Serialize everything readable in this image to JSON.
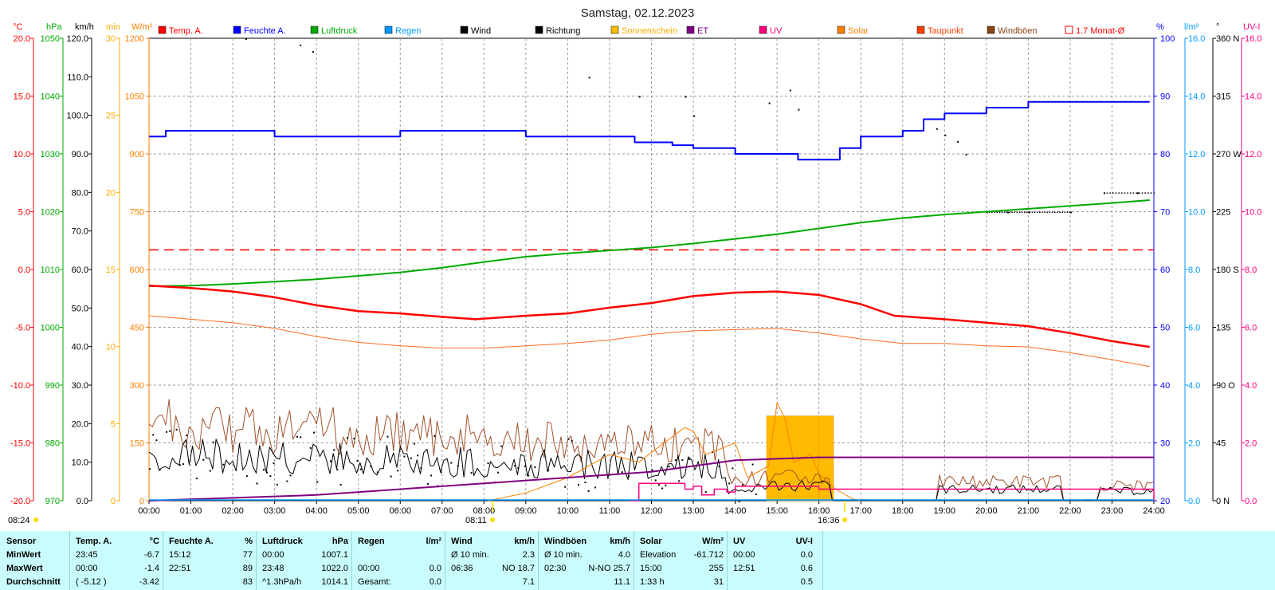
{
  "title": "Samstag, 02.12.2023",
  "chart_data": {
    "type": "line",
    "title": "Samstag, 02.12.2023",
    "x_ticks": [
      "00:00",
      "01:00",
      "02:00",
      "03:00",
      "04:00",
      "05:00",
      "06:00",
      "07:00",
      "08:00",
      "09:00",
      "10:00",
      "11:00",
      "12:00",
      "13:00",
      "14:00",
      "15:00",
      "16:00",
      "17:00",
      "18:00",
      "19:00",
      "20:00",
      "21:00",
      "22:00",
      "23:00",
      "24:00"
    ],
    "grid": "dashed",
    "legend": [
      {
        "name": "Temp. A.",
        "color": "#ff0000"
      },
      {
        "name": "Feuchte A.",
        "color": "#0000ff"
      },
      {
        "name": "Luftdruck",
        "color": "#00aa00"
      },
      {
        "name": "Regen",
        "color": "#0099ff"
      },
      {
        "name": "Wind",
        "color": "#000000"
      },
      {
        "name": "Richtung",
        "color": "#000000"
      },
      {
        "name": "Sonnenschein",
        "color": "#ffbb00"
      },
      {
        "name": "ET",
        "color": "#800080"
      },
      {
        "name": "UV",
        "color": "#ff0080"
      },
      {
        "name": "Solar",
        "color": "#ff8000"
      },
      {
        "name": "Taupunkt",
        "color": "#ff4000"
      },
      {
        "name": "Windböen",
        "color": "#8b4513"
      },
      {
        "name": "1.7 Monat-Ø",
        "color": "#ff0000"
      }
    ],
    "axes": {
      "temp": {
        "unit": "°C",
        "color": "#ff0000",
        "ticks": [
          "20.0",
          "15.0",
          "10.0",
          "5.0",
          "0.0",
          "-5.0",
          "-10.0",
          "-15.0",
          "-20.0"
        ]
      },
      "hpa": {
        "unit": "hPa",
        "color": "#00aa00",
        "ticks": [
          "1050",
          "1040",
          "1030",
          "1020",
          "1010",
          "1000",
          "990",
          "980",
          "970"
        ]
      },
      "kmh": {
        "unit": "km/h",
        "color": "#000000",
        "ticks": [
          "120.0",
          "110.0",
          "100.0",
          "90.0",
          "80.0",
          "70.0",
          "60.0",
          "50.0",
          "40.0",
          "30.0",
          "20.0",
          "10.0",
          "0.0"
        ]
      },
      "min": {
        "unit": "min",
        "color": "#ffaa00",
        "ticks": [
          "30",
          "25",
          "20",
          "15",
          "10",
          "5",
          "0"
        ]
      },
      "wm2": {
        "unit": "W/m²",
        "color": "#ff8000",
        "ticks": [
          "1200",
          "1050",
          "900",
          "750",
          "600",
          "450",
          "300",
          "150",
          "0"
        ]
      },
      "pct": {
        "unit": "%",
        "color": "#0000ff",
        "ticks": [
          "100",
          "90",
          "80",
          "70",
          "60",
          "50",
          "40",
          "30",
          "20"
        ]
      },
      "lm2": {
        "unit": "l/m²",
        "color": "#0099ff",
        "ticks": [
          "16.0",
          "14.0",
          "12.0",
          "10.0",
          "8.0",
          "6.0",
          "4.0",
          "2.0",
          "0.0"
        ]
      },
      "deg": {
        "unit": "°",
        "color": "#000000",
        "ticks": [
          "360 N",
          "315",
          "270 W",
          "225",
          "180 S",
          "135",
          "90 O",
          "45",
          "0 N"
        ]
      },
      "uvi": {
        "unit": "UV-I",
        "color": "#ff0080",
        "ticks": [
          "16.0",
          "14.0",
          "12.0",
          "10.0",
          "8.0",
          "6.0",
          "4.0",
          "2.0",
          "0.0"
        ]
      }
    },
    "temp_c": [
      [
        0,
        -1.4
      ],
      [
        1,
        -1.6
      ],
      [
        2,
        -1.9
      ],
      [
        3,
        -2.4
      ],
      [
        4,
        -3.1
      ],
      [
        5,
        -3.6
      ],
      [
        6,
        -3.8
      ],
      [
        7,
        -4.1
      ],
      [
        7.8,
        -4.3
      ],
      [
        9,
        -4.0
      ],
      [
        10,
        -3.8
      ],
      [
        11,
        -3.3
      ],
      [
        12,
        -2.9
      ],
      [
        13,
        -2.3
      ],
      [
        14,
        -2.0
      ],
      [
        15,
        -1.9
      ],
      [
        16,
        -2.2
      ],
      [
        17,
        -3.0
      ],
      [
        17.8,
        -4.0
      ],
      [
        19,
        -4.3
      ],
      [
        20,
        -4.6
      ],
      [
        21,
        -4.9
      ],
      [
        22,
        -5.5
      ],
      [
        23,
        -6.2
      ],
      [
        23.9,
        -6.7
      ]
    ],
    "dewpoint_c": [
      [
        0,
        -4.0
      ],
      [
        1,
        -4.3
      ],
      [
        2,
        -4.6
      ],
      [
        3,
        -5.1
      ],
      [
        4,
        -5.8
      ],
      [
        5,
        -6.3
      ],
      [
        6,
        -6.6
      ],
      [
        7,
        -6.8
      ],
      [
        8,
        -6.8
      ],
      [
        9,
        -6.6
      ],
      [
        10,
        -6.4
      ],
      [
        11,
        -6.1
      ],
      [
        12,
        -5.6
      ],
      [
        13,
        -5.3
      ],
      [
        14,
        -5.2
      ],
      [
        15,
        -5.1
      ],
      [
        16,
        -5.5
      ],
      [
        17,
        -6.0
      ],
      [
        18,
        -6.4
      ],
      [
        19,
        -6.4
      ],
      [
        20,
        -6.6
      ],
      [
        21,
        -6.7
      ],
      [
        22,
        -7.2
      ],
      [
        23,
        -7.8
      ],
      [
        23.9,
        -8.4
      ]
    ],
    "humidity_pct": [
      [
        0,
        83
      ],
      [
        0.4,
        84
      ],
      [
        1,
        84
      ],
      [
        2,
        84
      ],
      [
        3,
        83
      ],
      [
        5,
        83
      ],
      [
        6,
        84
      ],
      [
        8,
        84
      ],
      [
        9,
        83
      ],
      [
        11,
        83
      ],
      [
        11.6,
        82
      ],
      [
        12,
        82
      ],
      [
        12.5,
        81.5
      ],
      [
        13,
        81
      ],
      [
        14,
        80
      ],
      [
        15,
        80
      ],
      [
        15.5,
        79
      ],
      [
        16,
        79
      ],
      [
        16.5,
        81
      ],
      [
        17,
        83
      ],
      [
        18,
        84
      ],
      [
        18.5,
        86
      ],
      [
        19,
        87
      ],
      [
        20,
        88
      ],
      [
        20.6,
        88
      ],
      [
        21,
        89
      ],
      [
        22,
        89
      ],
      [
        23,
        89
      ],
      [
        23.9,
        89
      ]
    ],
    "pressure_hpa": [
      [
        0,
        1007.1
      ],
      [
        1,
        1007.2
      ],
      [
        2,
        1007.5
      ],
      [
        3,
        1007.9
      ],
      [
        4,
        1008.3
      ],
      [
        5,
        1008.9
      ],
      [
        6,
        1009.5
      ],
      [
        7,
        1010.3
      ],
      [
        8,
        1011.3
      ],
      [
        9,
        1012.2
      ],
      [
        10,
        1012.8
      ],
      [
        11,
        1013.3
      ],
      [
        12,
        1013.8
      ],
      [
        13,
        1014.5
      ],
      [
        14,
        1015.3
      ],
      [
        15,
        1016.1
      ],
      [
        16,
        1017.1
      ],
      [
        17,
        1018.1
      ],
      [
        18,
        1018.9
      ],
      [
        19,
        1019.5
      ],
      [
        20,
        1020.0
      ],
      [
        21,
        1020.5
      ],
      [
        22,
        1021.0
      ],
      [
        23,
        1021.5
      ],
      [
        23.9,
        1022.0
      ]
    ],
    "monthly_avg_temp_c": 1.7,
    "sunshine_blocks": [
      [
        14.75,
        16.0,
        5.5
      ],
      [
        16.0,
        16.35,
        5.5
      ]
    ],
    "wind_dir_deg": [
      [
        2.3,
        360
      ],
      [
        3.6,
        355
      ],
      [
        3.9,
        350
      ],
      [
        10.5,
        330
      ],
      [
        11.7,
        315
      ],
      [
        12.8,
        315
      ],
      [
        13,
        300
      ],
      [
        14.8,
        310
      ],
      [
        15.3,
        320
      ],
      [
        15.5,
        305
      ],
      [
        18.8,
        290
      ],
      [
        19,
        285
      ],
      [
        19.3,
        280
      ],
      [
        19.5,
        270
      ],
      [
        20,
        225
      ],
      [
        20.5,
        225
      ],
      [
        21,
        225
      ],
      [
        22,
        225
      ],
      [
        22.8,
        240
      ],
      [
        23.6,
        240
      ]
    ],
    "uv_index": [
      [
        11.5,
        0
      ],
      [
        11.7,
        0.6
      ],
      [
        12.5,
        0.6
      ],
      [
        12.8,
        0.4
      ],
      [
        13,
        0.5
      ],
      [
        13.2,
        0.2
      ],
      [
        13.5,
        0.4
      ],
      [
        13.8,
        0.3
      ],
      [
        14,
        0.5
      ],
      [
        15,
        0.5
      ],
      [
        16,
        0.4
      ],
      [
        24,
        0
      ]
    ],
    "et_cumulative": [
      [
        0,
        0
      ],
      [
        4,
        0.2
      ],
      [
        8,
        0.6
      ],
      [
        12,
        1.0
      ],
      [
        14,
        1.4
      ],
      [
        16,
        1.5
      ],
      [
        24,
        1.5
      ]
    ],
    "solar_wm2": [
      [
        8.1,
        0
      ],
      [
        9,
        20
      ],
      [
        10,
        60
      ],
      [
        11,
        120
      ],
      [
        11.7,
        100
      ],
      [
        12.3,
        150
      ],
      [
        12.8,
        190
      ],
      [
        13,
        180
      ],
      [
        13.3,
        120
      ],
      [
        14,
        150
      ],
      [
        14.3,
        60
      ],
      [
        14.8,
        90
      ],
      [
        15,
        255
      ],
      [
        15.2,
        210
      ],
      [
        15.4,
        100
      ],
      [
        15.8,
        120
      ],
      [
        16,
        70
      ],
      [
        16.4,
        30
      ],
      [
        16.8,
        5
      ],
      [
        17,
        0
      ]
    ]
  },
  "sun": {
    "rise_marker": "08:11",
    "set_marker": "16:36",
    "left_marker": "08:24"
  },
  "stats": {
    "headers": [
      "Sensor",
      "Temp. A.",
      "°C",
      "Feuchte A.",
      "%",
      "Luftdruck",
      "hPa",
      "Regen",
      "l/m²",
      "Wind",
      "km/h",
      "Windböen",
      "km/h",
      "Solar",
      "W/m²",
      "UV",
      "UV-I"
    ],
    "row_labels": [
      "MinWert",
      "MaxWert",
      "Durchschnitt"
    ],
    "temp": [
      [
        "23:45",
        "-6.7"
      ],
      [
        "00:00",
        "-1.4"
      ],
      [
        "( -5.12 )",
        "-3.42"
      ]
    ],
    "humidity": [
      [
        "15:12",
        "77"
      ],
      [
        "22:51",
        "89"
      ],
      [
        "",
        "83"
      ]
    ],
    "pressure": [
      [
        "00:00",
        "1007.1"
      ],
      [
        "23:48",
        "1022.0"
      ],
      [
        "^1.3hPa/h",
        "1014.1"
      ]
    ],
    "rain": [
      [
        "",
        ""
      ],
      [
        "00:00",
        "0.0"
      ],
      [
        "Gesamt:",
        "0.0"
      ]
    ],
    "wind": [
      [
        "Ø 10 min.",
        "2.3"
      ],
      [
        "06:36",
        "NO 18.7"
      ],
      [
        "",
        "7.1"
      ]
    ],
    "gust": [
      [
        "Ø 10 min.",
        "4.0"
      ],
      [
        "02:30",
        "N-NO 25.7"
      ],
      [
        "",
        "11.1"
      ]
    ],
    "solar": [
      [
        "Elevation",
        "-61.712"
      ],
      [
        "15:00",
        "255"
      ],
      [
        "1:33 h",
        "31"
      ]
    ],
    "uv": [
      [
        "00:00",
        "0.0"
      ],
      [
        "12:51",
        "0.6"
      ],
      [
        "",
        "0.5"
      ]
    ]
  }
}
